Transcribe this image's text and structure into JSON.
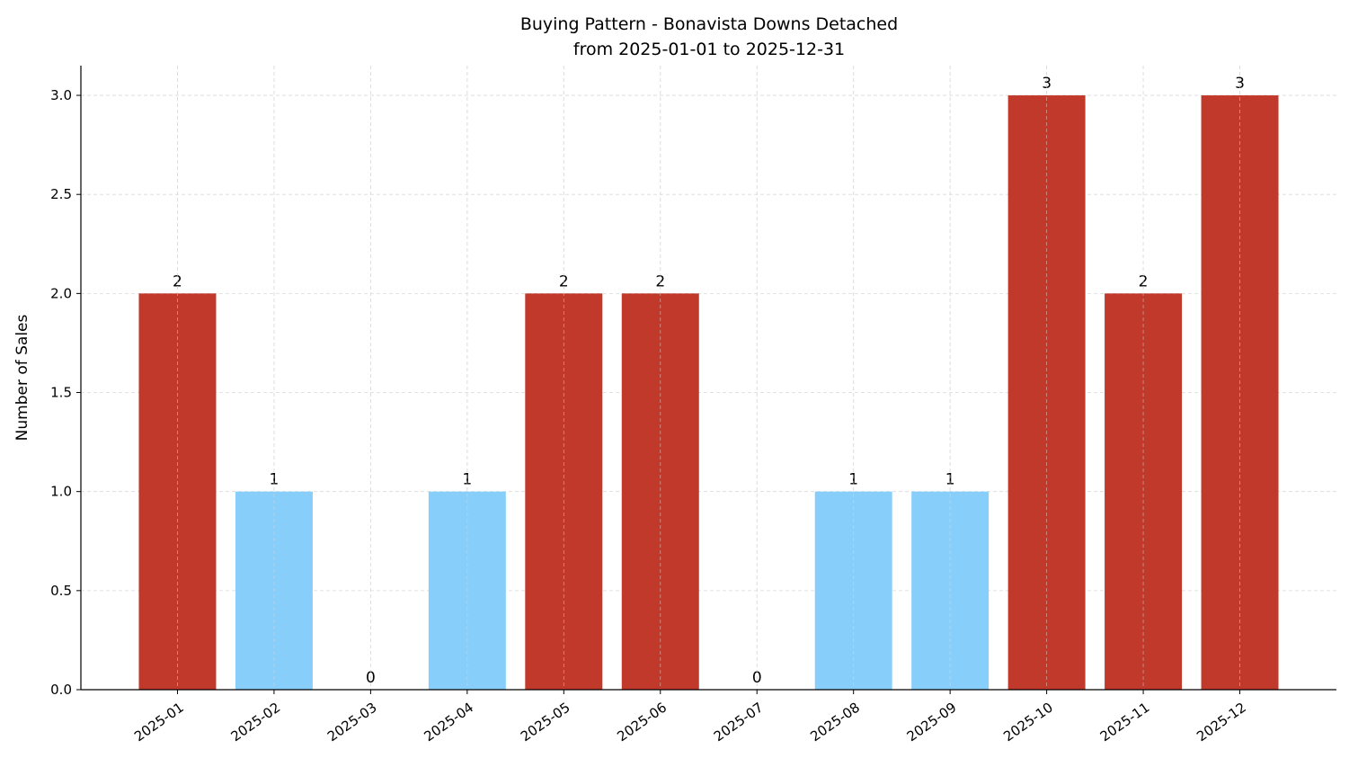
{
  "chart_data": {
    "type": "bar",
    "title": "Buying Pattern - Bonavista Downs Detached",
    "subtitle": "from 2025-01-01 to 2025-12-31",
    "xlabel": "",
    "ylabel": "Number of Sales",
    "categories": [
      "2025-01",
      "2025-02",
      "2025-03",
      "2025-04",
      "2025-05",
      "2025-06",
      "2025-07",
      "2025-08",
      "2025-09",
      "2025-10",
      "2025-11",
      "2025-12"
    ],
    "values": [
      2,
      1,
      0,
      1,
      2,
      2,
      0,
      1,
      1,
      3,
      2,
      3
    ],
    "data_labels": [
      "2",
      "1",
      "0",
      "1",
      "2",
      "2",
      "0",
      "1",
      "1",
      "3",
      "2",
      "3"
    ],
    "ylim": [
      0,
      3.15
    ],
    "yticks": [
      "0.0",
      "0.5",
      "1.0",
      "1.5",
      "2.0",
      "2.5",
      "3.0"
    ],
    "grid": true,
    "colors": {
      "high": "#c0392b",
      "low": "#87cefa"
    }
  }
}
